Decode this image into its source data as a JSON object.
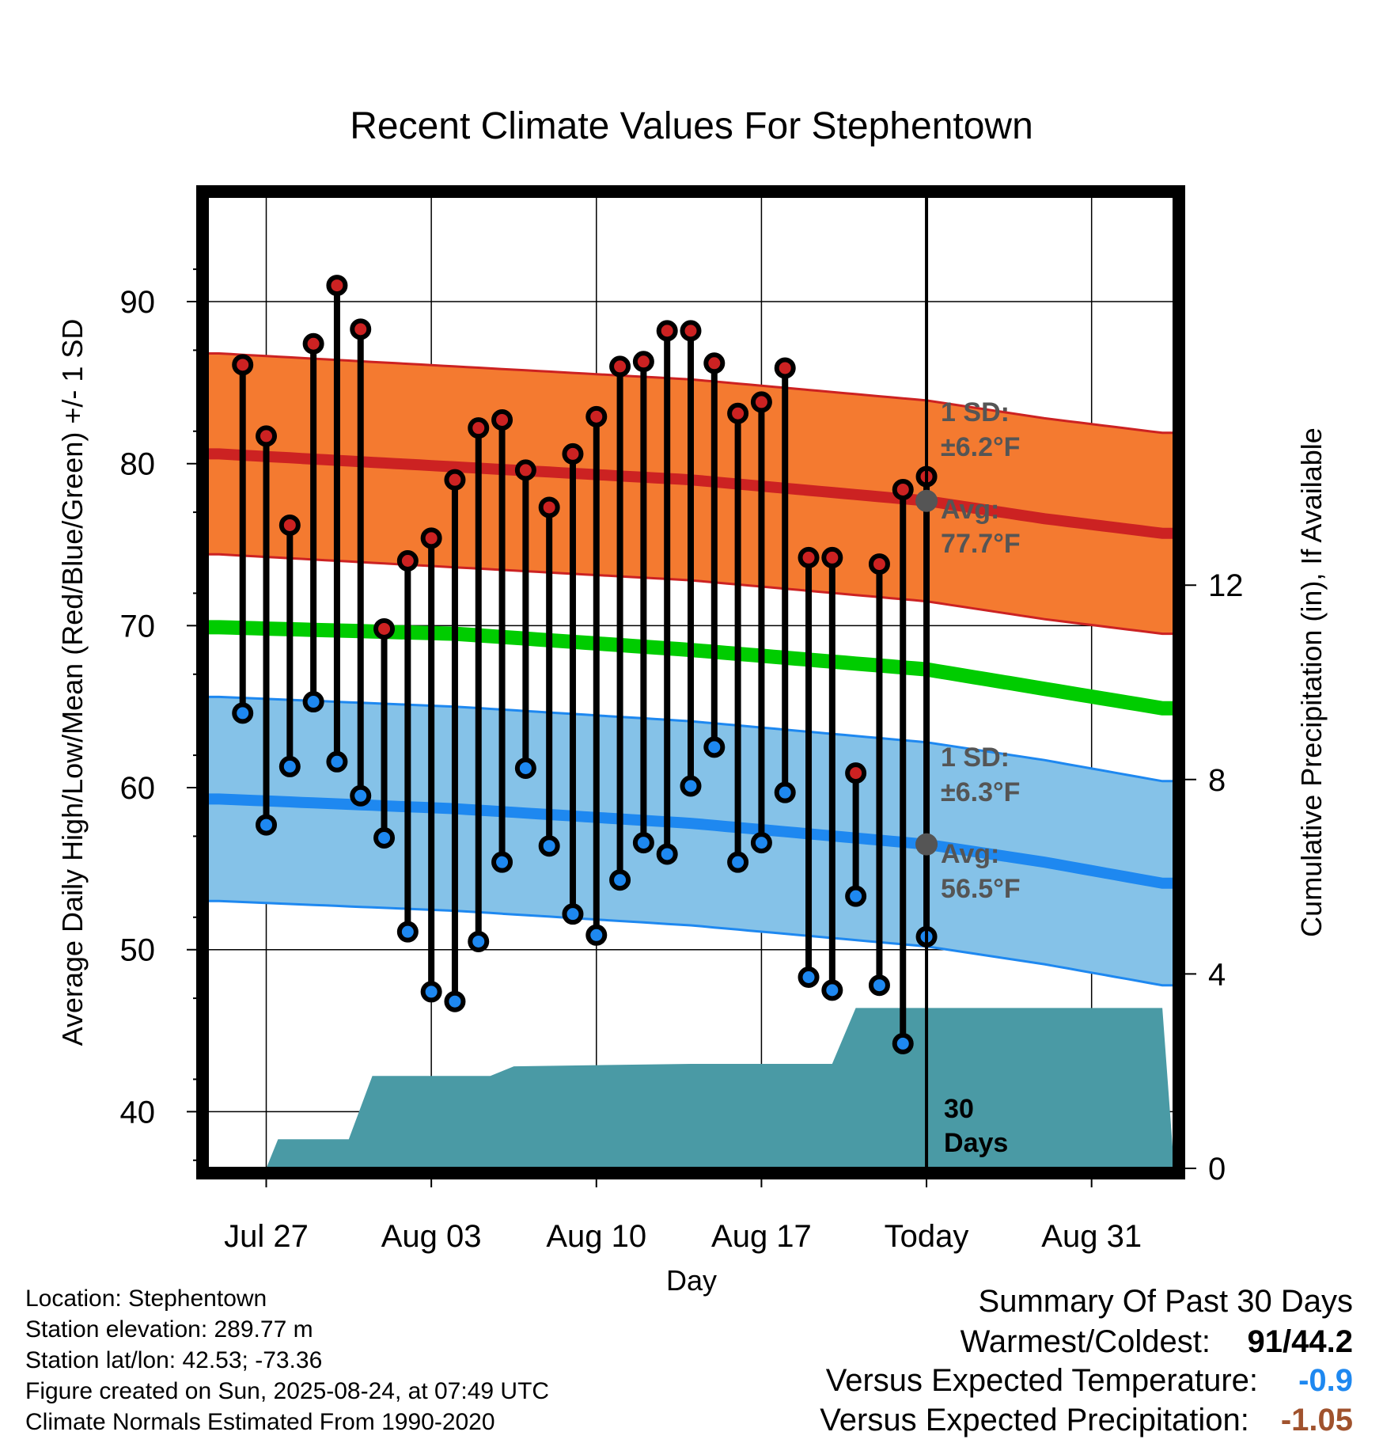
{
  "chart_data": {
    "type": "line",
    "title": "Recent Climate Values For Stephentown",
    "xlabel": "Day",
    "ylabel": "Average Daily High/Low/Mean (Red/Blue/Green) +/- 1 SD",
    "y2label": "Cumulative Precipitation (in), If Available",
    "ylim": [
      36.5,
      96.5
    ],
    "y_ticks": [
      40,
      50,
      60,
      70,
      80,
      90
    ],
    "y2lim": [
      0,
      20
    ],
    "y2_ticks": [
      0,
      4,
      8,
      12
    ],
    "x_tick_labels": [
      "Jul 27",
      "Aug 03",
      "Aug 10",
      "Aug 17",
      "Today",
      "Aug 31"
    ],
    "x_tick_days": [
      2,
      9,
      16,
      23,
      30,
      37
    ],
    "xlim": [
      -0.5,
      40.5
    ],
    "today_day": 30,
    "today_label_line1": "30",
    "today_label_line2": "Days",
    "day_offset": 1,
    "highs": [
      86.1,
      81.7,
      76.2,
      87.4,
      91.0,
      88.3,
      69.8,
      74.0,
      75.4,
      79.0,
      82.2,
      82.7,
      79.6,
      77.3,
      80.6,
      82.9,
      86.0,
      86.3,
      88.2,
      88.2,
      86.2,
      83.1,
      83.8,
      85.9,
      74.2,
      74.2,
      60.9,
      73.8,
      78.4,
      79.2
    ],
    "lows": [
      64.6,
      57.7,
      61.3,
      65.3,
      61.6,
      59.5,
      56.9,
      51.1,
      47.4,
      46.8,
      50.5,
      55.4,
      61.2,
      56.4,
      52.2,
      50.9,
      54.3,
      56.6,
      55.9,
      60.1,
      62.5,
      55.4,
      56.6,
      59.7,
      48.3,
      47.5,
      53.3,
      47.8,
      44.2,
      50.8
    ],
    "normal_high": {
      "days": [
        0,
        10,
        20,
        30,
        35,
        40
      ],
      "avg": [
        80.6,
        79.8,
        79.0,
        77.7,
        76.6,
        75.7
      ],
      "sd": 6.2
    },
    "normal_low": {
      "days": [
        0,
        10,
        20,
        30,
        35,
        40
      ],
      "avg": [
        59.3,
        58.7,
        57.8,
        56.5,
        55.4,
        54.1
      ],
      "sd": 6.3
    },
    "normal_mean": {
      "days": [
        0,
        10,
        20,
        30,
        35,
        40
      ],
      "avg": [
        69.9,
        69.5,
        68.5,
        67.3,
        66.1,
        64.9
      ]
    },
    "precip_cumulative": {
      "days": [
        0,
        2,
        2.5,
        5.5,
        6.5,
        11.5,
        12.5,
        20,
        26,
        27,
        40
      ],
      "values": [
        0,
        0,
        0.6,
        0.6,
        1.9,
        1.9,
        2.1,
        2.15,
        2.15,
        3.3,
        3.3
      ]
    },
    "annotations": {
      "high_sd": "1 SD:",
      "high_sd_value": "±6.2°F",
      "high_avg": "Avg:",
      "high_avg_value": "77.7°F",
      "low_sd": "1 SD:",
      "low_sd_value": "±6.3°F",
      "low_avg": "Avg:",
      "low_avg_value": "56.5°F"
    },
    "grid": true,
    "colors": {
      "high_band": "#f47a30",
      "high_line": "#cc2222",
      "low_band": "#85c2e8",
      "low_line": "#1e88f0",
      "mean_line": "#00cc00",
      "precip": "#4a9aa5",
      "high_dot": "#cc2222",
      "low_dot": "#1e88f0",
      "annotation": "#555555"
    }
  },
  "info": {
    "location": "Location: Stephentown",
    "elevation": "Station elevation: 289.77 m",
    "latlon": "Station lat/lon: 42.53; -73.36",
    "created": "Figure created on Sun, 2025-08-24, at 07:49 UTC",
    "normals": "Climate Normals Estimated From 1990-2020"
  },
  "summary": {
    "heading": "Summary Of Past 30 Days",
    "warmest_label": "Warmest/Coldest:",
    "warmest_value": "91/44.2",
    "temp_label": "Versus Expected Temperature:",
    "temp_value": "-0.9",
    "temp_color": "#1e88f0",
    "precip_label": "Versus Expected Precipitation:",
    "precip_value": "-1.05",
    "precip_color": "#a0522d"
  }
}
